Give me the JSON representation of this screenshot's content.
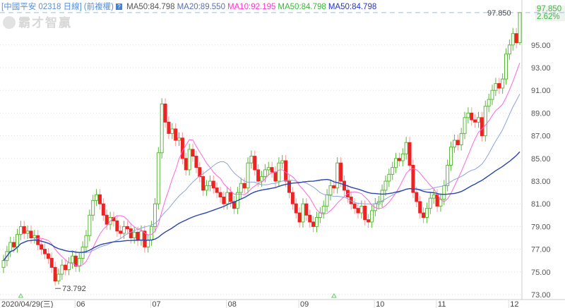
{
  "header": {
    "title": "[中國平安 02318 日線]",
    "adjust": "(前複權)",
    "help_icon": "question-icon",
    "ma_labels": [
      {
        "text": "MA50:84.798",
        "color": "#555555"
      },
      {
        "text": "MA20:89.550",
        "color": "#5a6fb0"
      },
      {
        "text": "MA10:92.195",
        "color": "#ff33cc"
      },
      {
        "text": "MA50:84.798",
        "color": "#33bb33"
      },
      {
        "text": "MA50:84.798",
        "color": "#2233cc"
      }
    ]
  },
  "logo": "霸才智贏",
  "last": {
    "price": "97.850",
    "change": "2.62%",
    "line_label": "97.850"
  },
  "colors": {
    "up": "#5cb83c",
    "down": "#ee2222",
    "ma10": "#ff66dd",
    "ma20": "#8ea2dd",
    "ma50": "#2a44b0",
    "grid": "#dddddd",
    "last_line": "#8cc4f0"
  },
  "chart_data": {
    "type": "candlestick",
    "ylim": [
      72.5,
      98.5
    ],
    "yticks": [
      "95.00",
      "93.00",
      "91.00",
      "89.00",
      "87.00",
      "85.00",
      "83.00",
      "81.00",
      "79.00",
      "77.00",
      "75.00",
      "73.00"
    ],
    "xticks": [
      {
        "label": "2020/04/29(三)",
        "index": 0
      },
      {
        "label": "06",
        "index": 22
      },
      {
        "label": "07",
        "index": 44
      },
      {
        "label": "08",
        "index": 66
      },
      {
        "label": "09",
        "index": 87
      },
      {
        "label": "10",
        "index": 109
      },
      {
        "label": "11",
        "index": 127
      },
      {
        "label": "12",
        "index": 148
      }
    ],
    "low_annotation": {
      "index": 15,
      "value": 73.792,
      "label": "73.792"
    },
    "markers": [
      5,
      96
    ],
    "ma_periods": [
      10,
      20,
      50
    ],
    "open": [
      75.4,
      76.0,
      76.8,
      77.6,
      77.2,
      78.3,
      79.0,
      78.4,
      78.6,
      78.0,
      78.2,
      77.4,
      77.0,
      76.6,
      76.2,
      75.4,
      74.2,
      74.8,
      75.6,
      75.2,
      75.8,
      76.4,
      75.5,
      76.2,
      77.2,
      78.2,
      80.0,
      81.3,
      81.8,
      81.0,
      80.0,
      79.2,
      79.8,
      79.5,
      78.6,
      78.4,
      79.0,
      78.8,
      78.0,
      78.5,
      77.8,
      78.6,
      77.2,
      77.8,
      79.0,
      81.0,
      85.5,
      89.8,
      88.2,
      87.2,
      87.6,
      86.6,
      86.8,
      85.0,
      84.0,
      85.8,
      85.2,
      84.2,
      83.4,
      82.2,
      82.6,
      83.0,
      82.4,
      82.0,
      81.6,
      81.0,
      82.0,
      81.2,
      80.6,
      82.0,
      82.8,
      82.4,
      84.6,
      85.2,
      84.0,
      83.0,
      83.4,
      84.0,
      84.2,
      83.8,
      83.0,
      84.6,
      84.8,
      83.0,
      82.0,
      81.0,
      80.2,
      79.4,
      81.0,
      80.0,
      79.4,
      79.0,
      79.8,
      80.2,
      80.8,
      81.8,
      82.6,
      82.4,
      84.6,
      83.0,
      82.2,
      81.6,
      81.0,
      80.6,
      80.2,
      80.8,
      79.6,
      79.4,
      80.4,
      81.0,
      81.2,
      82.2,
      83.0,
      83.6,
      84.2,
      85.0,
      84.8,
      85.4,
      86.4,
      84.4,
      82.0,
      81.2,
      80.2,
      79.8,
      80.6,
      81.5,
      81.8,
      80.8,
      81.4,
      82.6,
      84.4,
      86.0,
      86.6,
      86.2,
      87.2,
      88.6,
      89.0,
      88.4,
      88.2,
      88.6,
      87.0,
      89.6,
      90.2,
      91.0,
      91.6,
      91.2,
      92.0,
      94.2,
      95.0,
      96.0,
      95.2
    ],
    "high": [
      76.5,
      77.3,
      78.1,
      78.1,
      78.8,
      79.5,
      79.5,
      79.1,
      79.1,
      78.7,
      78.7,
      77.9,
      77.5,
      77.1,
      76.7,
      75.9,
      75.3,
      76.1,
      76.1,
      76.3,
      76.9,
      76.9,
      76.7,
      77.7,
      78.7,
      80.5,
      81.8,
      82.3,
      82.3,
      81.5,
      80.5,
      80.3,
      80.3,
      80.0,
      79.1,
      79.5,
      79.5,
      79.3,
      79.0,
      79.0,
      79.1,
      79.1,
      78.3,
      79.5,
      81.5,
      86.0,
      90.3,
      90.3,
      88.7,
      88.1,
      88.1,
      87.3,
      87.3,
      85.5,
      86.3,
      86.3,
      85.7,
      84.7,
      83.9,
      83.1,
      83.5,
      83.5,
      82.9,
      82.5,
      82.1,
      82.5,
      82.5,
      81.7,
      82.5,
      83.3,
      83.3,
      85.1,
      85.7,
      85.7,
      84.5,
      83.9,
      84.5,
      84.7,
      84.7,
      84.3,
      85.1,
      85.3,
      85.3,
      83.5,
      82.5,
      81.5,
      80.7,
      81.5,
      81.5,
      80.5,
      79.9,
      80.3,
      80.7,
      81.3,
      82.3,
      83.1,
      83.1,
      85.1,
      85.1,
      83.5,
      82.7,
      82.1,
      81.5,
      81.1,
      81.3,
      81.3,
      80.1,
      80.9,
      81.5,
      81.7,
      82.7,
      83.5,
      84.1,
      84.7,
      85.5,
      85.5,
      85.9,
      86.9,
      86.9,
      84.9,
      82.5,
      81.7,
      80.7,
      81.1,
      82.0,
      82.3,
      82.3,
      81.9,
      83.1,
      84.9,
      86.5,
      87.1,
      87.1,
      87.7,
      89.1,
      89.5,
      89.5,
      88.9,
      89.1,
      89.1,
      90.1,
      90.7,
      91.5,
      92.1,
      92.1,
      92.5,
      94.7,
      95.5,
      96.5,
      96.5,
      97.85
    ],
    "low": [
      74.9,
      75.5,
      76.3,
      76.7,
      76.7,
      77.8,
      77.9,
      77.9,
      77.5,
      77.5,
      76.9,
      76.5,
      76.1,
      75.7,
      74.9,
      73.792,
      73.9,
      74.3,
      74.7,
      74.7,
      75.3,
      75.0,
      75.0,
      75.7,
      76.7,
      77.7,
      79.5,
      80.8,
      80.5,
      79.5,
      78.7,
      78.7,
      79.0,
      78.1,
      77.9,
      77.9,
      78.3,
      77.5,
      77.5,
      77.3,
      77.3,
      76.7,
      76.7,
      77.3,
      78.5,
      80.5,
      85.0,
      87.7,
      86.7,
      86.7,
      86.1,
      86.1,
      84.5,
      83.5,
      83.5,
      84.7,
      83.7,
      82.9,
      81.7,
      81.7,
      82.1,
      81.9,
      81.5,
      81.1,
      80.5,
      80.5,
      80.7,
      80.1,
      80.1,
      81.5,
      81.9,
      81.9,
      84.1,
      83.5,
      82.5,
      82.5,
      82.9,
      83.5,
      83.3,
      82.5,
      82.5,
      84.1,
      82.5,
      81.5,
      80.5,
      79.7,
      78.9,
      78.9,
      79.5,
      78.9,
      78.5,
      78.5,
      79.3,
      79.7,
      80.3,
      81.3,
      81.9,
      81.9,
      82.5,
      81.7,
      81.1,
      80.5,
      80.1,
      79.7,
      79.7,
      79.1,
      78.9,
      78.9,
      79.9,
      80.5,
      80.7,
      81.7,
      82.5,
      83.1,
      83.7,
      84.3,
      84.3,
      84.9,
      83.9,
      81.5,
      80.7,
      79.7,
      79.3,
      79.3,
      80.1,
      81.0,
      80.3,
      80.3,
      80.9,
      82.1,
      83.9,
      85.5,
      85.7,
      85.7,
      86.7,
      88.1,
      87.9,
      87.7,
      87.7,
      86.5,
      86.5,
      89.1,
      89.7,
      90.5,
      90.7,
      90.7,
      91.5,
      93.7,
      94.5,
      94.7,
      95.0
    ],
    "close": [
      76.0,
      76.8,
      77.6,
      77.2,
      78.3,
      79.0,
      78.4,
      78.6,
      78.0,
      78.2,
      77.4,
      77.0,
      76.6,
      76.2,
      75.4,
      74.2,
      74.8,
      75.6,
      75.2,
      75.8,
      76.4,
      75.5,
      76.2,
      77.2,
      78.2,
      80.0,
      81.3,
      81.8,
      81.0,
      80.0,
      79.2,
      79.8,
      79.5,
      78.6,
      78.4,
      79.0,
      78.8,
      78.0,
      78.5,
      77.8,
      78.6,
      77.2,
      77.8,
      79.0,
      81.0,
      85.5,
      89.8,
      88.2,
      87.2,
      87.6,
      86.6,
      86.8,
      85.0,
      84.0,
      85.8,
      85.2,
      84.2,
      83.4,
      82.2,
      82.6,
      83.0,
      82.4,
      82.0,
      81.6,
      81.0,
      82.0,
      81.2,
      80.6,
      82.0,
      82.8,
      82.4,
      84.6,
      85.2,
      84.0,
      83.0,
      83.4,
      84.0,
      84.2,
      83.8,
      83.0,
      84.6,
      84.8,
      83.0,
      82.0,
      81.0,
      80.2,
      79.4,
      81.0,
      80.0,
      79.4,
      79.0,
      79.8,
      80.2,
      80.8,
      81.8,
      82.6,
      82.4,
      84.6,
      83.0,
      82.2,
      81.6,
      81.0,
      80.6,
      80.2,
      80.8,
      79.6,
      79.4,
      80.4,
      81.0,
      81.2,
      82.2,
      83.0,
      83.6,
      84.2,
      85.0,
      84.8,
      85.4,
      86.4,
      84.4,
      82.0,
      81.2,
      80.2,
      79.8,
      80.6,
      81.5,
      81.8,
      80.8,
      81.4,
      82.6,
      84.4,
      86.0,
      86.6,
      86.2,
      87.2,
      88.6,
      89.0,
      88.4,
      88.2,
      88.6,
      87.0,
      89.6,
      90.2,
      91.0,
      91.6,
      91.2,
      92.0,
      94.2,
      95.0,
      96.0,
      95.2,
      97.85
    ]
  }
}
